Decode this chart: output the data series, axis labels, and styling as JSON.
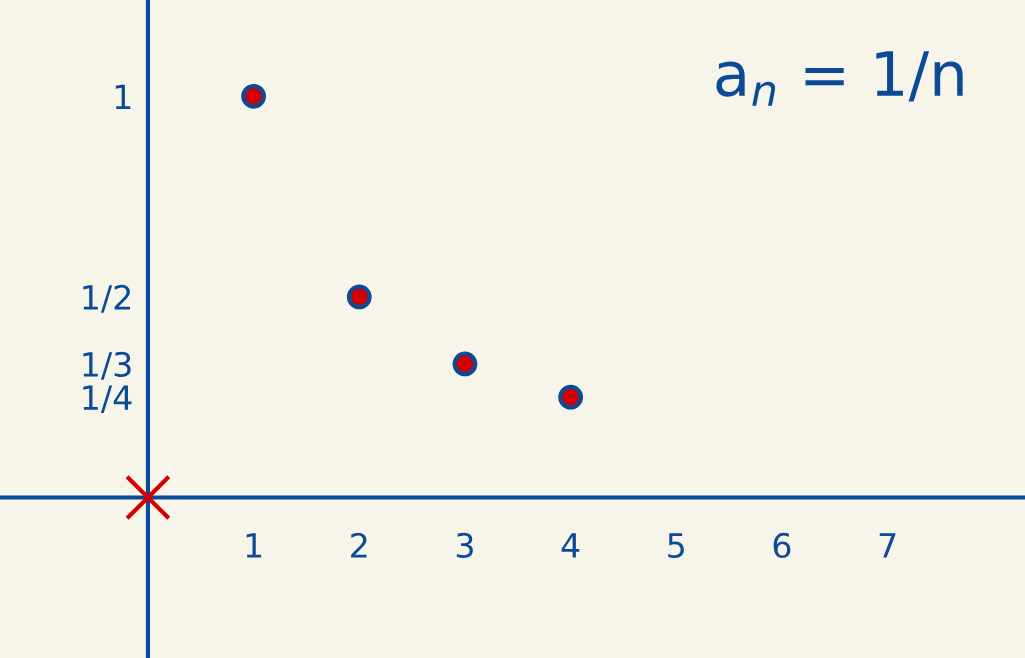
{
  "chart_data": {
    "type": "scatter",
    "series": [
      {
        "color": "#d40000",
        "marker": "circle",
        "x": [
          1,
          2,
          3,
          4
        ],
        "values": [
          1,
          0.5,
          0.333,
          0.25
        ]
      },
      {
        "color": "#d40000",
        "marker": "cross",
        "x": [
          0
        ],
        "values": [
          0
        ]
      }
    ],
    "xlim": [
      -1.4,
      8.3
    ],
    "ylim": [
      -0.4,
      1.24
    ],
    "xticks": [
      1,
      2,
      3,
      4,
      5,
      6,
      7
    ],
    "yticks": [
      {
        "value": 1,
        "label": "1"
      },
      {
        "value": 0.5,
        "label": "1/2"
      },
      {
        "value": 0.333,
        "label": "1/3"
      },
      {
        "value": 0.25,
        "label": "1/4"
      }
    ],
    "annotations": [
      "a$_{n}$ = 1/n"
    ],
    "grid": false
  }
}
